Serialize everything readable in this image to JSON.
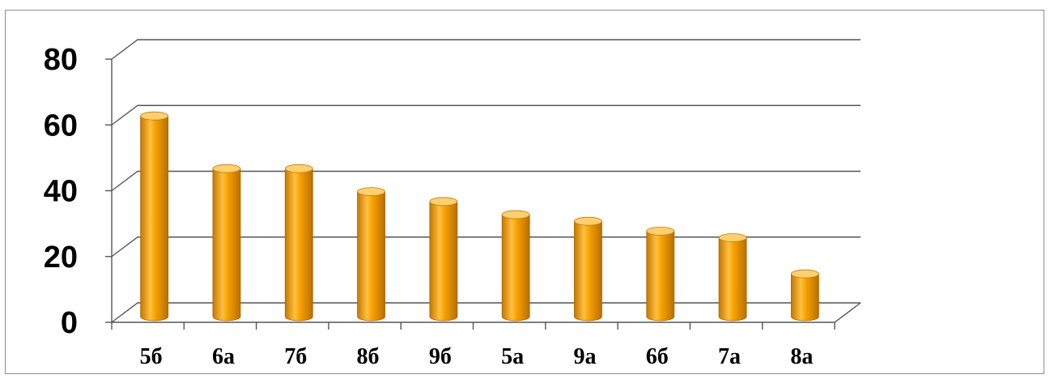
{
  "chart_data": {
    "type": "bar",
    "style": "3d-cylinder",
    "categories": [
      "5б",
      "6а",
      "7б",
      "8б",
      "9б",
      "5а",
      "9а",
      "6б",
      "7а",
      "8а"
    ],
    "values": [
      61,
      45,
      45,
      38,
      35,
      31,
      29,
      26,
      24,
      13
    ],
    "ylim": [
      0,
      80
    ],
    "y_ticks": [
      "0",
      "20",
      "40",
      "60",
      "80"
    ],
    "grid": true,
    "legend": "none",
    "colors": {
      "bar": "#f5a000",
      "bar_dark": "#c47800",
      "bar_light": "#ffd070",
      "grid": "#555555",
      "text": "#000000"
    }
  }
}
